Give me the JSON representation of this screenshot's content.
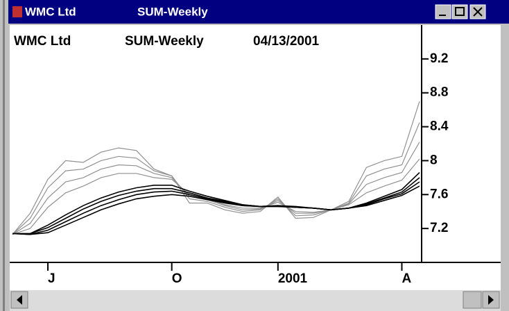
{
  "window": {
    "title": "WMC Ltd",
    "subtitle": "SUM-Weekly"
  },
  "chart_data": {
    "type": "line",
    "title": "WMC Ltd",
    "subtitle": "SUM-Weekly",
    "date": "04/13/2001",
    "categories": [
      null,
      null,
      "J",
      null,
      null,
      null,
      null,
      null,
      null,
      "O",
      null,
      null,
      null,
      null,
      null,
      "2001",
      null,
      null,
      null,
      null,
      null,
      null,
      "A",
      null
    ],
    "series": [
      {
        "color": "#909090",
        "values": [
          7.13,
          7.38,
          7.78,
          8.0,
          7.98,
          8.1,
          8.15,
          8.12,
          7.9,
          7.82,
          7.5,
          7.5,
          7.42,
          7.38,
          7.4,
          7.57,
          7.32,
          7.33,
          7.42,
          7.52,
          7.92,
          8.0,
          8.05,
          8.7
        ]
      },
      {
        "color": "#909090",
        "values": [
          7.13,
          7.32,
          7.68,
          7.88,
          7.9,
          8.0,
          8.05,
          8.03,
          7.88,
          7.82,
          7.55,
          7.52,
          7.45,
          7.4,
          7.42,
          7.55,
          7.35,
          7.36,
          7.42,
          7.5,
          7.82,
          7.9,
          7.95,
          8.45
        ]
      },
      {
        "color": "#909090",
        "values": [
          7.13,
          7.26,
          7.56,
          7.75,
          7.8,
          7.9,
          7.95,
          7.94,
          7.85,
          7.8,
          7.58,
          7.54,
          7.47,
          7.42,
          7.43,
          7.53,
          7.38,
          7.38,
          7.42,
          7.49,
          7.72,
          7.8,
          7.86,
          8.22
        ]
      },
      {
        "color": "#909090",
        "values": [
          7.13,
          7.2,
          7.45,
          7.62,
          7.7,
          7.8,
          7.85,
          7.85,
          7.8,
          7.78,
          7.6,
          7.55,
          7.48,
          7.44,
          7.44,
          7.51,
          7.4,
          7.39,
          7.42,
          7.48,
          7.62,
          7.7,
          7.77,
          8.02
        ]
      },
      {
        "color": "#000000",
        "values": [
          7.14,
          7.14,
          7.24,
          7.36,
          7.47,
          7.56,
          7.63,
          7.68,
          7.71,
          7.71,
          7.64,
          7.58,
          7.53,
          7.48,
          7.46,
          7.47,
          7.46,
          7.44,
          7.42,
          7.44,
          7.5,
          7.58,
          7.66,
          7.86
        ]
      },
      {
        "color": "#000000",
        "values": [
          7.14,
          7.14,
          7.21,
          7.32,
          7.43,
          7.52,
          7.59,
          7.64,
          7.67,
          7.67,
          7.62,
          7.56,
          7.52,
          7.48,
          7.46,
          7.47,
          7.45,
          7.44,
          7.42,
          7.44,
          7.49,
          7.56,
          7.63,
          7.8
        ]
      },
      {
        "color": "#000000",
        "values": [
          7.14,
          7.13,
          7.18,
          7.28,
          7.38,
          7.47,
          7.54,
          7.6,
          7.63,
          7.64,
          7.6,
          7.55,
          7.51,
          7.47,
          7.46,
          7.46,
          7.45,
          7.44,
          7.42,
          7.44,
          7.48,
          7.55,
          7.61,
          7.75
        ]
      },
      {
        "color": "#000000",
        "values": [
          7.14,
          7.13,
          7.15,
          7.24,
          7.33,
          7.42,
          7.49,
          7.55,
          7.58,
          7.6,
          7.58,
          7.54,
          7.5,
          7.47,
          7.46,
          7.46,
          7.45,
          7.44,
          7.42,
          7.44,
          7.47,
          7.53,
          7.59,
          7.7
        ]
      }
    ],
    "ylim": [
      6.8,
      9.6
    ],
    "yticks": [
      7.2,
      7.6,
      8,
      8.4,
      8.8,
      9.2
    ],
    "grid": false
  }
}
